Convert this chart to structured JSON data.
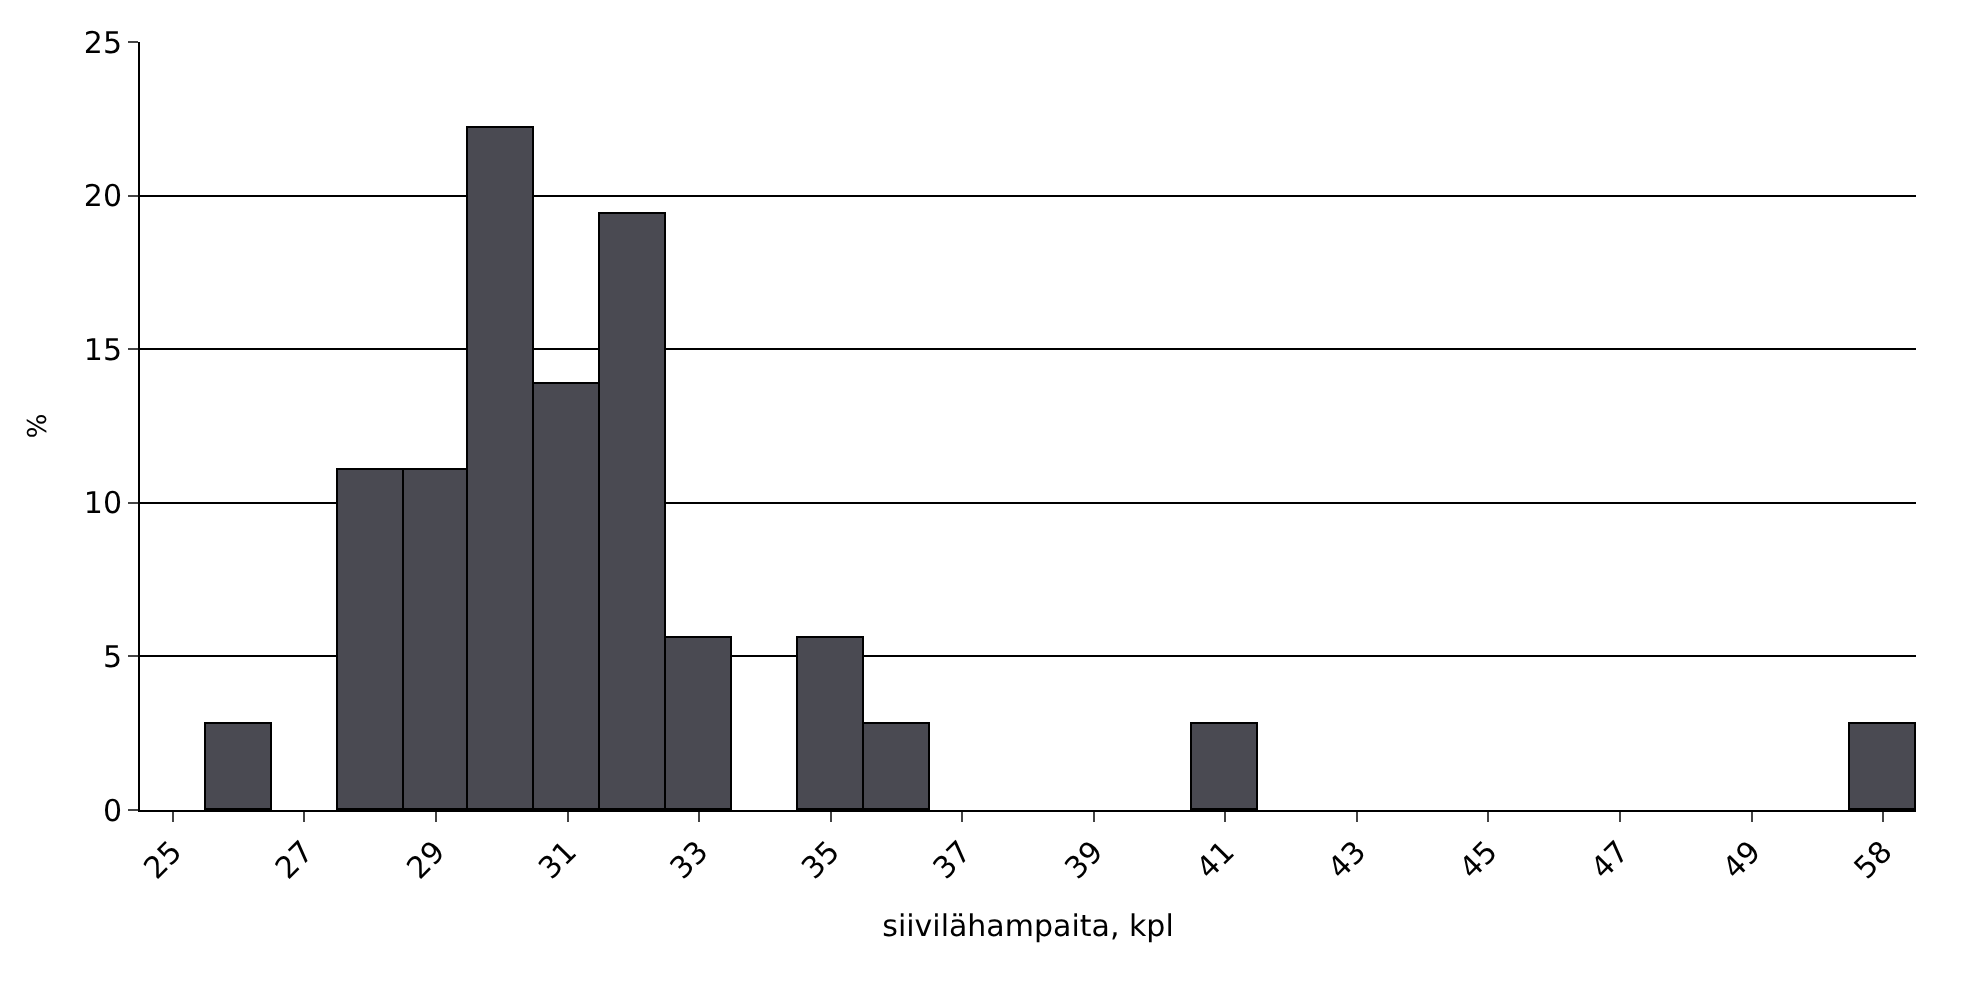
{
  "chart_data": {
    "type": "bar",
    "xlabel": "siivilähampaita, kpl",
    "ylabel": "%",
    "categories": [
      "25",
      null,
      "27",
      null,
      "29",
      null,
      "31",
      null,
      "33",
      null,
      "35",
      null,
      "37",
      null,
      "39",
      null,
      "41",
      null,
      "43",
      null,
      "45",
      null,
      "47",
      null,
      "49",
      null,
      "58"
    ],
    "values": [
      0,
      2.8,
      0,
      11.1,
      11.1,
      22.2,
      13.9,
      19.4,
      5.6,
      0,
      5.6,
      2.8,
      0,
      0,
      0,
      0,
      2.8,
      0,
      0,
      0,
      0,
      0,
      0,
      0,
      0,
      0,
      2.8
    ],
    "color": "#4a4a52",
    "ylim": [
      0,
      25
    ],
    "yticks": [
      0,
      5,
      10,
      15,
      20,
      25
    ],
    "grid": "y"
  }
}
